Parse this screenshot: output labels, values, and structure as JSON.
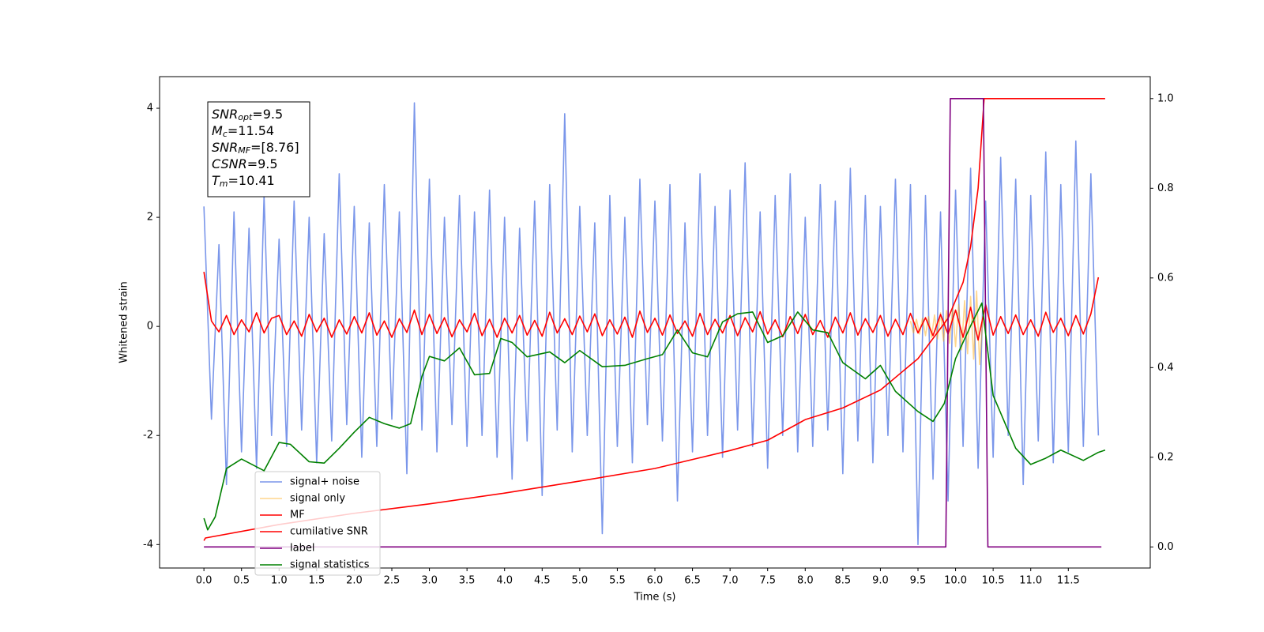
{
  "chart_data": {
    "type": "line",
    "xlabel": "Time (s)",
    "ylabel": "Whitened strain",
    "xlim": [
      -0.59,
      12.59
    ],
    "ylim": [
      -4.43,
      4.58
    ],
    "y2lim": [
      -0.047,
      1.049
    ],
    "xticks": [
      {
        "value": 0,
        "label": "0.0"
      },
      0.5,
      {
        "value": 1,
        "label": "1.0"
      },
      1.5,
      {
        "value": 2,
        "label": "2.0"
      },
      2.5,
      {
        "value": 3,
        "label": "3.0"
      },
      3.5,
      {
        "value": 4,
        "label": "4.0"
      },
      4.5,
      {
        "value": 5,
        "label": "5.0"
      },
      5.5,
      {
        "value": 6,
        "label": "6.0"
      },
      6.5,
      {
        "value": 7,
        "label": "7.0"
      },
      7.5,
      {
        "value": 8,
        "label": "8.0"
      },
      8.5,
      {
        "value": 9,
        "label": "9.0"
      },
      9.5,
      {
        "value": 10,
        "label": "10.0"
      },
      10.5,
      {
        "value": 11,
        "label": "11.0"
      },
      11.5
    ],
    "yticks": [
      -4,
      -2,
      0,
      2,
      4
    ],
    "y2ticks": [
      {
        "value": 0,
        "label": "0.0"
      },
      0.2,
      0.4,
      0.6,
      0.8,
      {
        "value": 1,
        "label": "1.0"
      }
    ],
    "legend": "lower left",
    "textbox": [
      {
        "sym": "SNR",
        "sub": "opt",
        "rest": "=9.5"
      },
      {
        "sym": "M",
        "sub": "c",
        "rest": "=11.54"
      },
      {
        "sym": "SNR",
        "sub": "MF",
        "rest": "=[8.76]"
      },
      {
        "sym": "CSNR",
        "rest": "=9.5"
      },
      {
        "sym": "T",
        "sub": "m",
        "rest": "=10.41"
      }
    ],
    "x": [
      0.0,
      0.1,
      0.2,
      0.3,
      0.4,
      0.5,
      0.6,
      0.7,
      0.8,
      0.9,
      1.0,
      1.1,
      1.2,
      1.3,
      1.4,
      1.5,
      1.6,
      1.7,
      1.8,
      1.9,
      2.0,
      2.1,
      2.2,
      2.3,
      2.4,
      2.5,
      2.6,
      2.7,
      2.8,
      2.9,
      3.0,
      3.1,
      3.2,
      3.3,
      3.4,
      3.5,
      3.6,
      3.7,
      3.8,
      3.9,
      4.0,
      4.1,
      4.2,
      4.3,
      4.4,
      4.5,
      4.6,
      4.7,
      4.8,
      4.9,
      5.0,
      5.1,
      5.2,
      5.3,
      5.4,
      5.5,
      5.6,
      5.7,
      5.8,
      5.9,
      6.0,
      6.1,
      6.2,
      6.3,
      6.4,
      6.5,
      6.6,
      6.7,
      6.8,
      6.9,
      7.0,
      7.1,
      7.2,
      7.3,
      7.4,
      7.5,
      7.6,
      7.7,
      7.8,
      7.9,
      8.0,
      8.1,
      8.2,
      8.3,
      8.4,
      8.5,
      8.6,
      8.7,
      8.8,
      8.9,
      9.0,
      9.1,
      9.2,
      9.3,
      9.4,
      9.5,
      9.6,
      9.7,
      9.8,
      9.9,
      10.0,
      10.1,
      10.2,
      10.3,
      10.4,
      10.5,
      10.6,
      10.7,
      10.8,
      10.9,
      11.0,
      11.1,
      11.2,
      11.3,
      11.4,
      11.5,
      11.6,
      11.7,
      11.8,
      11.9
    ],
    "series": [
      {
        "name": "signal+ noise",
        "color": "#4169e1",
        "alpha": 0.7,
        "axis": "y",
        "values": [
          2.2,
          -1.7,
          1.5,
          -2.9,
          2.1,
          -2.3,
          1.8,
          -2.6,
          2.4,
          -2.0,
          1.6,
          -2.2,
          2.3,
          -1.9,
          2.0,
          -2.5,
          1.7,
          -2.1,
          2.8,
          -1.8,
          2.2,
          -2.4,
          1.9,
          -2.2,
          2.6,
          -1.7,
          2.1,
          -2.7,
          4.1,
          -1.9,
          2.7,
          -2.3,
          2.0,
          -1.8,
          2.4,
          -2.2,
          2.1,
          -2.0,
          2.5,
          -2.4,
          2.0,
          -2.8,
          1.8,
          -2.1,
          2.3,
          -3.1,
          2.6,
          -1.9,
          3.9,
          -2.3,
          2.2,
          -2.0,
          1.9,
          -3.8,
          2.4,
          -2.2,
          2.0,
          -2.5,
          2.7,
          -1.8,
          2.3,
          -2.1,
          2.6,
          -3.2,
          1.9,
          -2.3,
          2.8,
          -2.0,
          2.2,
          -2.4,
          2.5,
          -1.9,
          3.0,
          -2.2,
          2.1,
          -2.6,
          2.4,
          -2.0,
          2.8,
          -2.3,
          2.0,
          -2.2,
          2.6,
          -1.9,
          2.3,
          -2.7,
          2.9,
          -2.1,
          2.4,
          -2.5,
          2.2,
          -2.0,
          2.7,
          -2.3,
          2.6,
          -4.0,
          2.4,
          -2.8,
          2.1,
          -3.2,
          2.5,
          -2.2,
          2.9,
          -2.6,
          2.3,
          -2.4,
          3.1,
          -2.0,
          2.7,
          -2.9,
          2.4,
          -2.1,
          3.2,
          -2.5,
          2.6,
          -2.3,
          3.4,
          -2.2,
          2.8,
          -2.0
        ]
      },
      {
        "name": "signal only",
        "color": "#ffa500",
        "alpha": 0.45,
        "axis": "y",
        "x": [
          9.4,
          9.44,
          9.48,
          9.52,
          9.56,
          9.6,
          9.64,
          9.68,
          9.72,
          9.76,
          9.8,
          9.84,
          9.88,
          9.92,
          9.96,
          10.0,
          10.04,
          10.08,
          10.12,
          10.16,
          10.2,
          10.24,
          10.28,
          10.32,
          10.36
        ],
        "values": [
          0.1,
          -0.12,
          0.13,
          -0.14,
          0.15,
          -0.17,
          0.18,
          -0.2,
          0.21,
          -0.23,
          0.25,
          -0.27,
          0.29,
          -0.31,
          0.34,
          -0.37,
          0.4,
          -0.43,
          0.47,
          -0.5,
          0.55,
          -0.6,
          0.65,
          -0.7,
          0.1
        ]
      },
      {
        "name": "MF",
        "color": "#ff0000",
        "axis": "y",
        "values": [
          1.0,
          0.1,
          -0.1,
          0.2,
          -0.15,
          0.12,
          -0.1,
          0.25,
          -0.12,
          0.15,
          0.2,
          -0.15,
          0.1,
          -0.18,
          0.22,
          -0.1,
          0.15,
          -0.2,
          0.12,
          -0.14,
          0.18,
          -0.12,
          0.25,
          -0.16,
          0.1,
          -0.2,
          0.14,
          -0.11,
          0.3,
          -0.15,
          0.22,
          -0.13,
          0.16,
          -0.19,
          0.12,
          -0.1,
          0.24,
          -0.17,
          0.13,
          -0.2,
          0.15,
          -0.12,
          0.2,
          -0.16,
          0.11,
          -0.18,
          0.26,
          -0.12,
          0.14,
          -0.15,
          0.19,
          -0.1,
          0.23,
          -0.17,
          0.12,
          -0.14,
          0.17,
          -0.2,
          0.28,
          -0.11,
          0.15,
          -0.16,
          0.21,
          -0.13,
          0.1,
          -0.18,
          0.24,
          -0.15,
          0.13,
          -0.12,
          0.2,
          -0.17,
          0.16,
          -0.1,
          0.27,
          -0.14,
          0.12,
          -0.19,
          0.18,
          -0.13,
          0.22,
          -0.15,
          0.11,
          -0.2,
          0.17,
          -0.12,
          0.25,
          -0.16,
          0.14,
          -0.11,
          0.2,
          -0.18,
          0.13,
          -0.15,
          0.24,
          -0.12,
          0.16,
          -0.17,
          0.22,
          -0.14,
          0.3,
          -0.2,
          0.35,
          -0.25,
          0.4,
          -0.16,
          0.18,
          -0.13,
          0.21,
          -0.15,
          0.12,
          -0.18,
          0.26,
          -0.11,
          0.15,
          -0.17,
          0.2,
          -0.14,
          0.23,
          0.9
        ]
      },
      {
        "name": "cumilative SNR",
        "color": "#ff0000",
        "axis": "y2",
        "x": [
          0.0,
          0.02,
          1.0,
          2.0,
          3.0,
          4.0,
          5.0,
          6.0,
          7.0,
          7.5,
          8.0,
          8.5,
          9.0,
          9.5,
          9.9,
          10.1,
          10.2,
          10.3,
          10.38,
          10.42,
          11.99
        ],
        "values": [
          0.014,
          0.02,
          0.05,
          0.075,
          0.096,
          0.12,
          0.147,
          0.175,
          0.215,
          0.238,
          0.284,
          0.31,
          0.35,
          0.42,
          0.51,
          0.59,
          0.67,
          0.8,
          1.0,
          1.0,
          1.0
        ]
      },
      {
        "name": "label",
        "color": "#800080",
        "axis": "y2",
        "x": [
          0.0,
          9.87,
          9.93,
          10.37,
          10.43,
          11.94
        ],
        "values": [
          0,
          0,
          1,
          1,
          0,
          0
        ]
      },
      {
        "name": "signal statistics",
        "color": "#008000",
        "axis": "y2",
        "x": [
          0.0,
          0.05,
          0.15,
          0.3,
          0.5,
          0.8,
          1.0,
          1.15,
          1.4,
          1.6,
          1.8,
          2.0,
          2.2,
          2.4,
          2.6,
          2.75,
          2.9,
          3.0,
          3.2,
          3.4,
          3.6,
          3.8,
          3.95,
          4.1,
          4.3,
          4.6,
          4.8,
          5.0,
          5.3,
          5.6,
          5.9,
          6.1,
          6.3,
          6.5,
          6.7,
          6.9,
          7.1,
          7.3,
          7.5,
          7.7,
          7.9,
          8.1,
          8.3,
          8.5,
          8.8,
          9.0,
          9.2,
          9.5,
          9.7,
          9.85,
          10.0,
          10.2,
          10.35,
          10.5,
          10.8,
          11.0,
          11.2,
          11.4,
          11.7,
          11.9,
          11.99
        ],
        "values": [
          0.064,
          0.038,
          0.067,
          0.175,
          0.196,
          0.17,
          0.233,
          0.229,
          0.19,
          0.187,
          0.22,
          0.256,
          0.289,
          0.275,
          0.265,
          0.275,
          0.38,
          0.425,
          0.415,
          0.444,
          0.384,
          0.387,
          0.465,
          0.456,
          0.424,
          0.435,
          0.411,
          0.438,
          0.402,
          0.405,
          0.42,
          0.429,
          0.484,
          0.433,
          0.424,
          0.502,
          0.52,
          0.524,
          0.456,
          0.471,
          0.524,
          0.484,
          0.478,
          0.411,
          0.375,
          0.405,
          0.347,
          0.302,
          0.28,
          0.32,
          0.42,
          0.493,
          0.544,
          0.338,
          0.22,
          0.184,
          0.198,
          0.216,
          0.193,
          0.211,
          0.216
        ]
      }
    ]
  }
}
